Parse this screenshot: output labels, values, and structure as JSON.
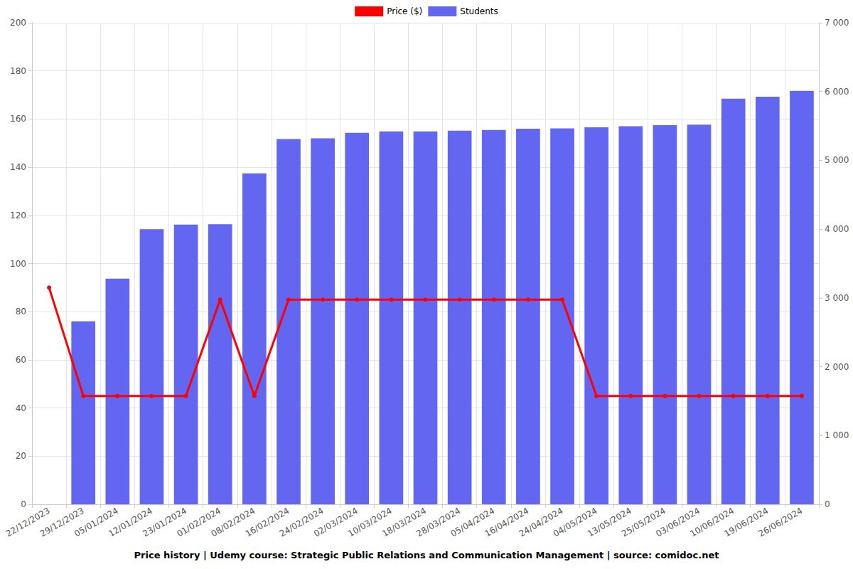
{
  "chart_data": {
    "type": "bar",
    "title": "Price history | Udemy course: Strategic Public Relations and Communication Management | source: comidoc.net",
    "categories": [
      "22/12/2023",
      "29/12/2023",
      "05/01/2024",
      "12/01/2024",
      "23/01/2024",
      "01/02/2024",
      "08/02/2024",
      "16/02/2024",
      "24/02/2024",
      "02/03/2024",
      "10/03/2024",
      "18/03/2024",
      "28/03/2024",
      "05/04/2024",
      "16/04/2024",
      "24/04/2024",
      "04/05/2024",
      "13/05/2024",
      "25/05/2024",
      "03/06/2024",
      "10/06/2024",
      "19/06/2024",
      "26/06/2024"
    ],
    "series": [
      {
        "name": "Price ($)",
        "type": "line",
        "color": "#ff0000",
        "marker": "circle",
        "values": [
          90,
          45,
          45,
          45,
          45,
          85,
          45,
          85,
          85,
          85,
          85,
          85,
          85,
          85,
          85,
          85,
          45,
          45,
          45,
          45,
          45,
          45,
          45
        ]
      },
      {
        "name": "Students",
        "type": "bar",
        "color": "#6366f1",
        "axis": "y2",
        "values": [
          null,
          2660,
          3280,
          4000,
          4065,
          4070,
          4810,
          5310,
          5320,
          5400,
          5420,
          5420,
          5430,
          5440,
          5460,
          5465,
          5480,
          5495,
          5510,
          5520,
          5895,
          5925,
          6010
        ]
      }
    ],
    "ylim": [
      0,
      200
    ],
    "yticks": [
      0,
      20,
      40,
      60,
      80,
      100,
      120,
      140,
      160,
      180,
      200
    ],
    "y2lim": [
      0,
      7000
    ],
    "y2ticks": [
      0,
      {
        "value": 1000,
        "label": "1 000"
      },
      {
        "value": 2000,
        "label": "2 000"
      },
      {
        "value": 3000,
        "label": "3 000"
      },
      {
        "value": 4000,
        "label": "4 000"
      },
      {
        "value": 5000,
        "label": "5 000"
      },
      {
        "value": 6000,
        "label": "6 000"
      },
      {
        "value": 7000,
        "label": "7 000"
      }
    ],
    "grid": true,
    "legend": "top"
  }
}
